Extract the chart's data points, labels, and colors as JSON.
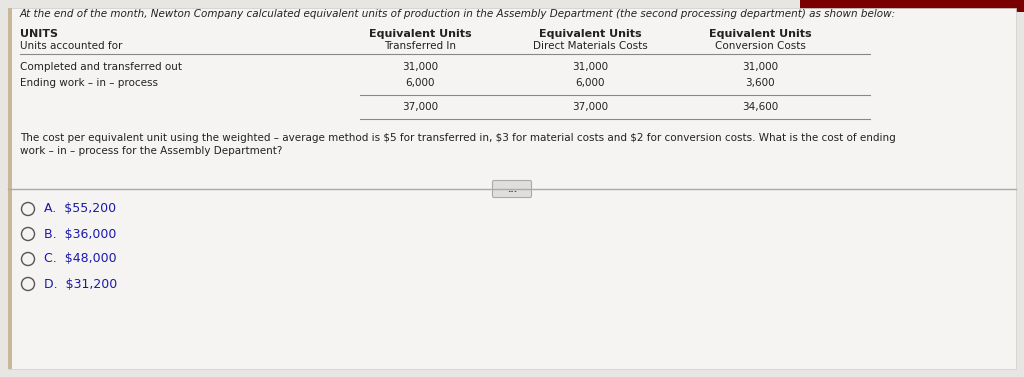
{
  "bg_color": "#e8e6e3",
  "top_bar_color": "#7a0000",
  "white_area_color": "#f5f4f2",
  "header_text": "At the end of the month, Newton Company calculated equivalent units of production in the Assembly Department (the second processing department) as shown below:",
  "col_headers": [
    [
      "UNITS",
      "Units accounted for"
    ],
    [
      "Equivalent Units",
      "Transferred In"
    ],
    [
      "Equivalent Units",
      "Direct Materials Costs"
    ],
    [
      "Equivalent Units",
      "Conversion Costs"
    ]
  ],
  "row1_label": "Completed and transferred out",
  "row2_label": "Ending work – in – process",
  "row1_vals": [
    "31,000",
    "31,000",
    "31,000"
  ],
  "row2_vals": [
    "6,000",
    "6,000",
    "3,600"
  ],
  "total_vals": [
    "37,000",
    "37,000",
    "34,600"
  ],
  "body_text_line1": "The cost per equivalent unit using the weighted – average method is $5 for transferred in, $3 for material costs and $2 for conversion costs. What is the cost of ending",
  "body_text_line2": "work – in – process for the Assembly Department?",
  "options": [
    "A.  $55,200",
    "B.  $36,000",
    "C.  $48,000",
    "D.  $31,200"
  ],
  "ellipsis_text": "...",
  "text_color": "#222222",
  "line_color": "#888888",
  "option_color": "#1a1aaa"
}
